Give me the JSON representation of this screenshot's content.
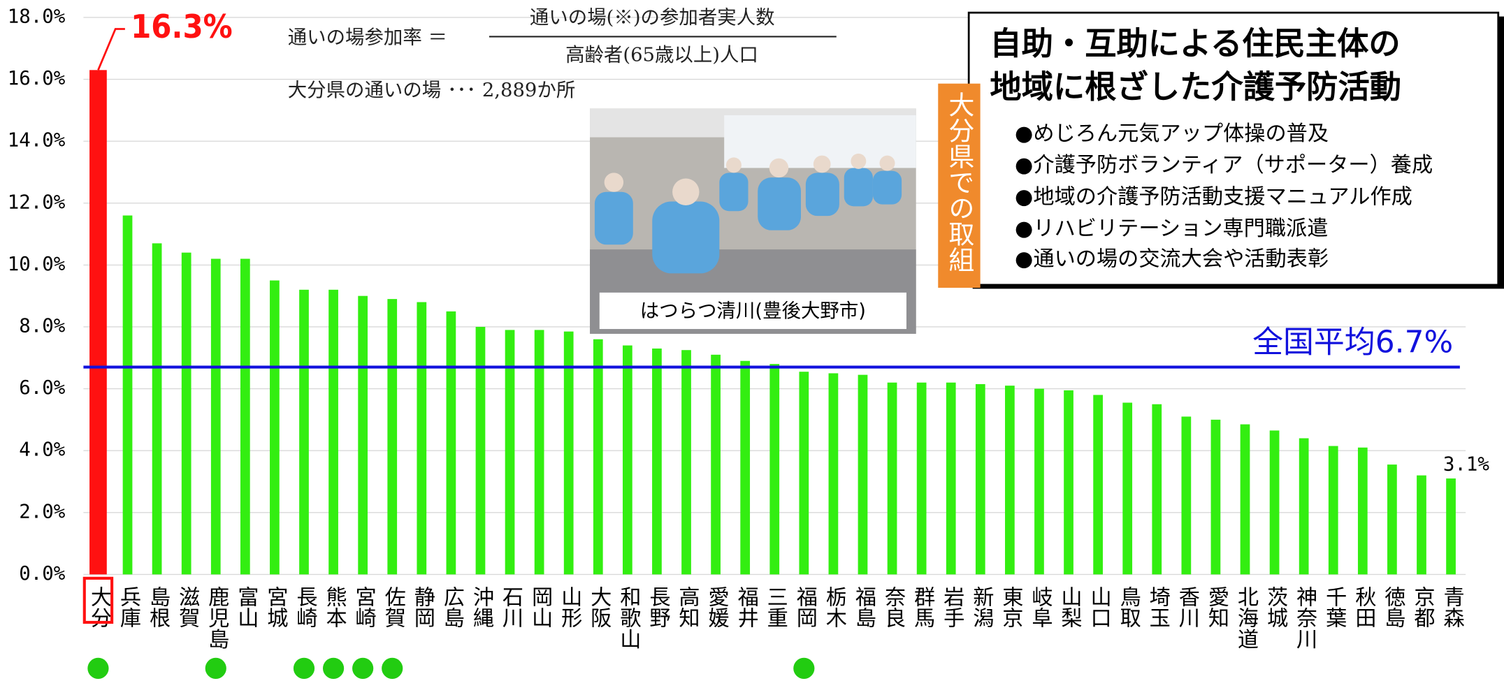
{
  "chart_data": {
    "type": "bar",
    "categories": [
      "大分",
      "兵庫",
      "島根",
      "滋賀",
      "鹿児島",
      "富山",
      "宮城",
      "長崎",
      "熊本",
      "宮崎",
      "佐賀",
      "静岡",
      "広島",
      "沖縄",
      "石川",
      "岡山",
      "山形",
      "大阪",
      "和歌山",
      "長野",
      "高知",
      "愛媛",
      "福井",
      "三重",
      "福岡",
      "栃木",
      "福島",
      "奈良",
      "群馬",
      "岩手",
      "新潟",
      "東京",
      "岐阜",
      "山梨",
      "山口",
      "鳥取",
      "埼玉",
      "香川",
      "愛知",
      "北海道",
      "茨城",
      "神奈川",
      "千葉",
      "秋田",
      "徳島",
      "京都",
      "青森"
    ],
    "values": [
      16.3,
      11.6,
      10.7,
      10.4,
      10.2,
      10.2,
      9.5,
      9.2,
      9.2,
      9.0,
      8.9,
      8.8,
      8.5,
      8.0,
      7.9,
      7.9,
      7.85,
      7.6,
      7.4,
      7.3,
      7.25,
      7.1,
      6.9,
      6.8,
      6.55,
      6.5,
      6.45,
      6.2,
      6.2,
      6.2,
      6.15,
      6.1,
      6.0,
      5.95,
      5.8,
      5.55,
      5.5,
      5.1,
      5.0,
      4.85,
      4.65,
      4.4,
      4.15,
      4.1,
      3.55,
      3.2,
      3.1
    ],
    "value_labels": [
      "16.3%",
      null,
      null,
      null,
      null,
      null,
      null,
      null,
      null,
      null,
      null,
      null,
      null,
      null,
      null,
      null,
      null,
      null,
      null,
      null,
      null,
      null,
      null,
      null,
      null,
      null,
      null,
      null,
      null,
      null,
      null,
      null,
      null,
      null,
      null,
      null,
      null,
      null,
      null,
      null,
      null,
      null,
      null,
      null,
      null,
      null,
      "3.1%"
    ],
    "color": "#33ee11",
    "highlight_color": "#ff1111",
    "ylim": [
      0,
      18
    ],
    "yticks": [
      {
        "value": 0,
        "label": "0.0%"
      },
      {
        "value": 2,
        "label": "2.0%"
      },
      {
        "value": 4,
        "label": "4.0%"
      },
      {
        "value": 6,
        "label": "6.0%"
      },
      {
        "value": 8,
        "label": "8.0%"
      },
      {
        "value": 10,
        "label": "10.0%"
      },
      {
        "value": 12,
        "label": "12.0%"
      },
      {
        "value": 14,
        "label": "14.0%"
      },
      {
        "value": 16,
        "label": "16.0%"
      },
      {
        "value": 18,
        "label": "18.0%"
      }
    ],
    "grid": true,
    "reference_line": {
      "value": 6.7,
      "label": "全国平均6.7%",
      "color": "#1111dd"
    },
    "annotations": {
      "formula_left": "通いの場参加率 ＝",
      "formula_numerator": "通いの場(※)の参加者実人数",
      "formula_denominator": "高齢者(65歳以上)人口",
      "places": "大分県の通いの場 ･･･ 2,889か所",
      "photo_caption": "はつらつ清川(豊後大野市)",
      "side_label": "大分県での取組",
      "box_title": [
        "自助・互助による住民主体の",
        "地域に根ざした介護予防活動"
      ],
      "box_items": [
        "●めじろん元気アップ体操の普及",
        "●介護予防ボランティア（サポーター）養成",
        "●地域の介護予防活動支援マニュアル作成",
        "●リハビリテーション専門職派遣",
        "●通いの場の交流大会や活動表彰"
      ]
    }
  }
}
